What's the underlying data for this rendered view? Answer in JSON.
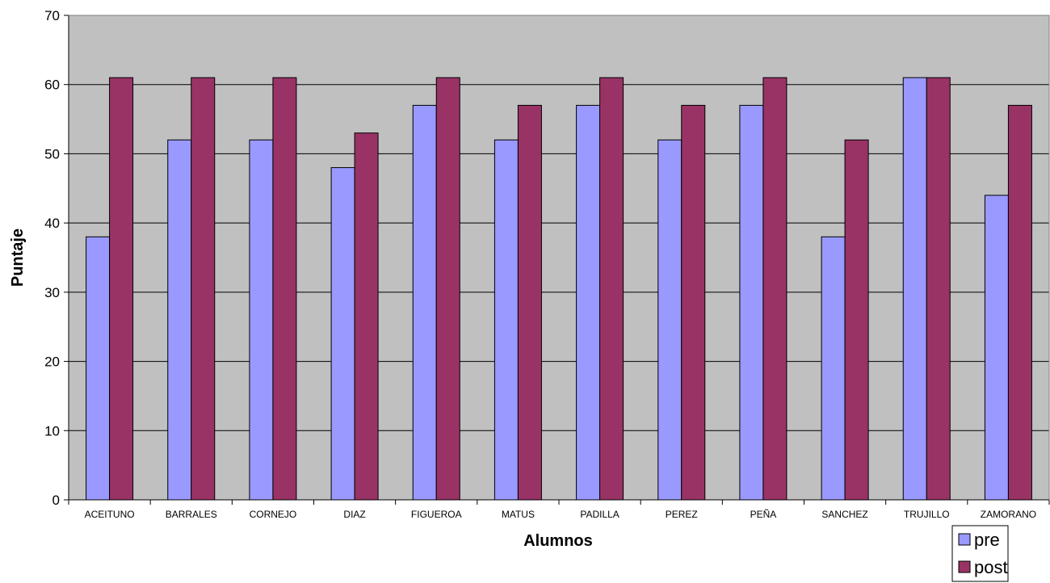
{
  "chart_data": {
    "type": "bar",
    "title": "",
    "xlabel": "Alumnos",
    "ylabel": "Puntaje",
    "ylim": [
      0,
      70
    ],
    "yticks": [
      0,
      10,
      20,
      30,
      40,
      50,
      60,
      70
    ],
    "grid": true,
    "legend_position": "bottom-right",
    "plot_background": "#C0C0C0",
    "categories": [
      "ACEITUNO",
      "BARRALES",
      "CORNEJO",
      "DIAZ",
      "FIGUEROA",
      "MATUS",
      "PADILLA",
      "PEREZ",
      "PEÑA",
      "SANCHEZ",
      "TRUJILLO",
      "ZAMORANO"
    ],
    "series": [
      {
        "name": "pre",
        "color": "#9999FF",
        "values": [
          38,
          52,
          52,
          48,
          57,
          52,
          57,
          52,
          57,
          38,
          61,
          44
        ]
      },
      {
        "name": "post",
        "color": "#993366",
        "values": [
          61,
          61,
          61,
          53,
          61,
          57,
          61,
          57,
          61,
          52,
          61,
          57
        ]
      }
    ]
  }
}
